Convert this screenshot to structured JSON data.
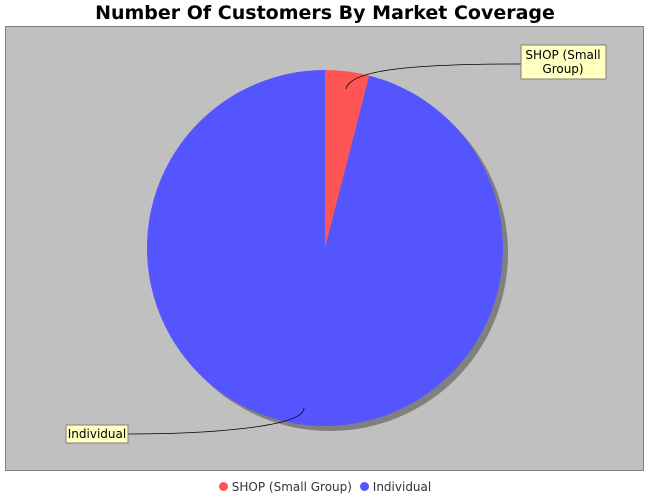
{
  "chart_data": {
    "type": "pie",
    "title": "Number Of Customers By Market Coverage",
    "series": [
      {
        "name": "SHOP (Small Group)",
        "value": 4,
        "color": "#ff5555"
      },
      {
        "name": "Individual",
        "value": 96,
        "color": "#5555ff"
      }
    ],
    "labels": [
      {
        "lines": [
          "SHOP (Small",
          "Group)"
        ]
      },
      {
        "lines": [
          "Individual"
        ]
      }
    ],
    "legend": "bottom",
    "plot_background": "#c0c0c0"
  }
}
